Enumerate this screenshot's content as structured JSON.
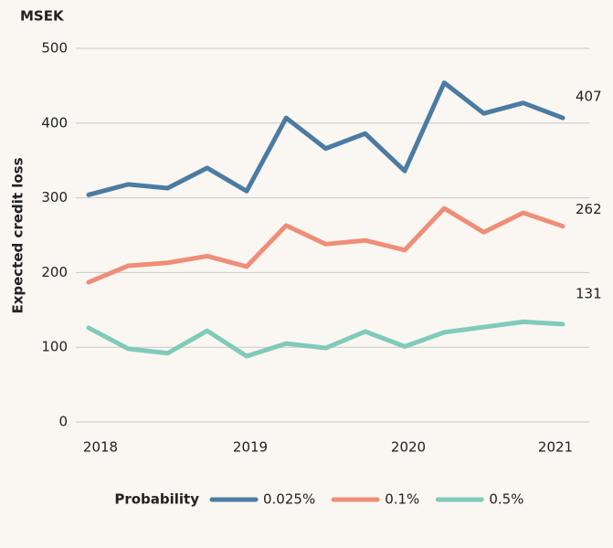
{
  "chart_data": {
    "type": "line",
    "y_unit": "MSEK",
    "y_label": "Expected credit loss",
    "categories": [
      "2018",
      null,
      null,
      null,
      "2019",
      null,
      null,
      null,
      "2020",
      null,
      null,
      null,
      "2021"
    ],
    "series": [
      {
        "name": "0.025%",
        "color": "#4a7ca3",
        "values": [
          304,
          318,
          313,
          340,
          309,
          407,
          366,
          386,
          336,
          454,
          413,
          427,
          407
        ]
      },
      {
        "name": "0.1%",
        "color": "#ee8e78",
        "values": [
          187,
          209,
          213,
          222,
          208,
          263,
          238,
          243,
          230,
          286,
          254,
          280,
          262
        ]
      },
      {
        "name": "0.5%",
        "color": "#7fcbb9",
        "values": [
          126,
          98,
          92,
          122,
          88,
          105,
          99,
          121,
          101,
          120,
          127,
          134,
          131
        ]
      }
    ],
    "ylim": [
      0,
      500
    ],
    "yticks": [
      0,
      100,
      200,
      300,
      400,
      500
    ],
    "grid": true,
    "legend_title": "Probability",
    "legend": "bottom"
  }
}
